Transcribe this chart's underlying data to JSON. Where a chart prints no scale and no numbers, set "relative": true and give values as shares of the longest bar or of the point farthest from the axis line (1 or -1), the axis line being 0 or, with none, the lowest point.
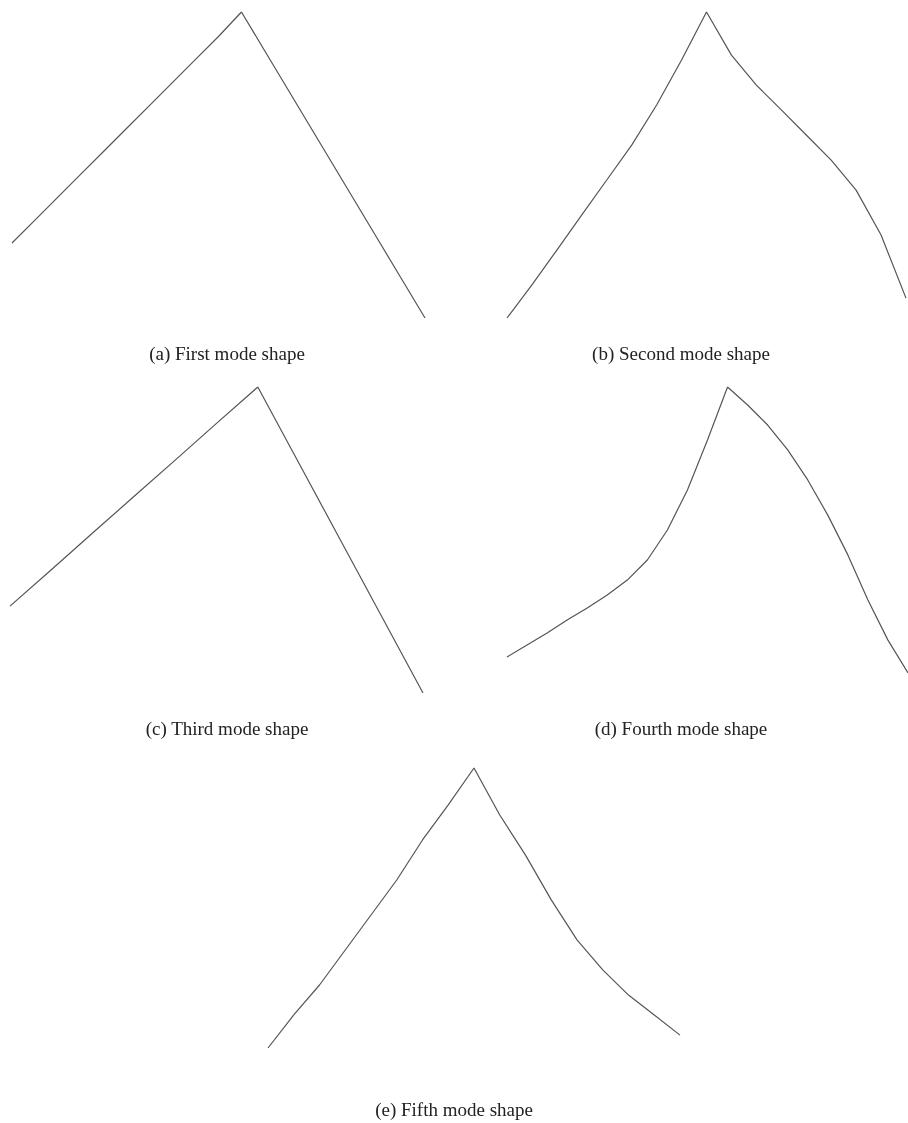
{
  "chart_data": [
    {
      "type": "line",
      "title": "(a) First mode shape",
      "relative": true,
      "color": "#555555",
      "categories": [
        null,
        null,
        null,
        null,
        null,
        null,
        null,
        null,
        null,
        null,
        null,
        null,
        null,
        null,
        null,
        null,
        null,
        null,
        null
      ],
      "values": [
        0.245,
        0.32,
        0.395,
        0.47,
        0.545,
        0.62,
        0.695,
        0.77,
        0.845,
        0.92,
        1,
        0.875,
        0.75,
        0.625,
        0.5,
        0.375,
        0.25,
        0.125,
        0
      ]
    },
    {
      "type": "line",
      "title": "(b) Second mode shape",
      "relative": true,
      "color": "#555555",
      "categories": [
        null,
        null,
        null,
        null,
        null,
        null,
        null,
        null,
        null,
        null,
        null,
        null,
        null,
        null,
        null,
        null,
        null
      ],
      "values": [
        0,
        0.108,
        0.222,
        0.337,
        0.451,
        0.565,
        0.696,
        0.843,
        1,
        0.859,
        0.761,
        0.68,
        0.598,
        0.516,
        0.418,
        0.271,
        0.065
      ]
    },
    {
      "type": "line",
      "title": "(c) Third mode shape",
      "relative": true,
      "color": "#555555",
      "categories": [
        null,
        null,
        null,
        null,
        null,
        null,
        null,
        null,
        null,
        null,
        null
      ],
      "values": [
        0.284,
        0.403,
        0.523,
        0.642,
        0.761,
        0.881,
        1,
        0.75,
        0.5,
        0.25,
        0
      ]
    },
    {
      "type": "line",
      "title": "(d) Fourth mode shape",
      "relative": true,
      "color": "#555555",
      "categories": [
        null,
        null,
        null,
        null,
        null,
        null,
        null,
        null,
        null,
        null,
        null,
        null,
        null,
        null,
        null,
        null,
        null,
        null,
        null,
        null,
        null
      ],
      "values": [
        0.056,
        0.098,
        0.14,
        0.185,
        0.227,
        0.273,
        0.325,
        0.395,
        0.5,
        0.64,
        0.815,
        1,
        0.937,
        0.867,
        0.78,
        0.675,
        0.552,
        0.413,
        0.255,
        0.115,
        0
      ]
    },
    {
      "type": "line",
      "title": "(e) Fifth mode shape",
      "relative": true,
      "color": "#555555",
      "categories": [
        null,
        null,
        null,
        null,
        null,
        null,
        null,
        null,
        null,
        null,
        null,
        null,
        null,
        null,
        null,
        null,
        null
      ],
      "values": [
        0,
        0.118,
        0.225,
        0.35,
        0.475,
        0.6,
        0.743,
        0.868,
        1,
        0.832,
        0.689,
        0.529,
        0.386,
        0.279,
        0.189,
        0.118,
        0.046
      ]
    }
  ]
}
